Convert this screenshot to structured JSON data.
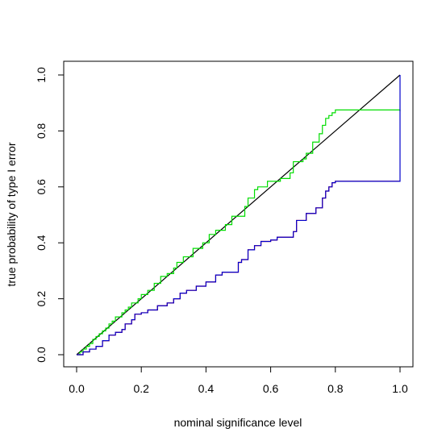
{
  "chart_data": {
    "type": "line",
    "title": "",
    "xlabel": "nominal significance level",
    "ylabel": "true probability of type I error",
    "xlim": [
      0,
      1
    ],
    "ylim": [
      0,
      1
    ],
    "x_ticks": [
      0.0,
      0.2,
      0.4,
      0.6,
      0.8,
      1.0
    ],
    "y_ticks": [
      0.0,
      0.2,
      0.4,
      0.6,
      0.8,
      1.0
    ],
    "x_tick_labels": [
      "0.0",
      "0.2",
      "0.4",
      "0.6",
      "0.8",
      "1.0"
    ],
    "y_tick_labels": [
      "0.0",
      "0.2",
      "0.4",
      "0.6",
      "0.8",
      "1.0"
    ],
    "grid": false,
    "series": [
      {
        "color": "#000000",
        "step": false,
        "points": [
          [
            0,
            0
          ],
          [
            1,
            1
          ]
        ]
      },
      {
        "color": "#00dd00",
        "step": true,
        "points": [
          [
            0.0,
            0.0
          ],
          [
            0.01,
            0.01
          ],
          [
            0.02,
            0.02
          ],
          [
            0.03,
            0.03
          ],
          [
            0.04,
            0.04
          ],
          [
            0.05,
            0.055
          ],
          [
            0.06,
            0.065
          ],
          [
            0.07,
            0.075
          ],
          [
            0.08,
            0.085
          ],
          [
            0.09,
            0.095
          ],
          [
            0.1,
            0.11
          ],
          [
            0.11,
            0.12
          ],
          [
            0.12,
            0.135
          ],
          [
            0.14,
            0.15
          ],
          [
            0.15,
            0.16
          ],
          [
            0.16,
            0.17
          ],
          [
            0.17,
            0.185
          ],
          [
            0.19,
            0.2
          ],
          [
            0.2,
            0.215
          ],
          [
            0.22,
            0.23
          ],
          [
            0.24,
            0.255
          ],
          [
            0.26,
            0.28
          ],
          [
            0.28,
            0.29
          ],
          [
            0.3,
            0.31
          ],
          [
            0.31,
            0.33
          ],
          [
            0.33,
            0.35
          ],
          [
            0.36,
            0.38
          ],
          [
            0.39,
            0.4
          ],
          [
            0.41,
            0.43
          ],
          [
            0.43,
            0.445
          ],
          [
            0.46,
            0.465
          ],
          [
            0.48,
            0.495
          ],
          [
            0.52,
            0.53
          ],
          [
            0.53,
            0.56
          ],
          [
            0.55,
            0.59
          ],
          [
            0.56,
            0.6
          ],
          [
            0.59,
            0.62
          ],
          [
            0.63,
            0.63
          ],
          [
            0.66,
            0.65
          ],
          [
            0.67,
            0.69
          ],
          [
            0.7,
            0.7
          ],
          [
            0.71,
            0.72
          ],
          [
            0.73,
            0.76
          ],
          [
            0.75,
            0.79
          ],
          [
            0.76,
            0.82
          ],
          [
            0.77,
            0.845
          ],
          [
            0.78,
            0.855
          ],
          [
            0.79,
            0.865
          ],
          [
            0.8,
            0.875
          ],
          [
            1.0,
            0.875
          ],
          [
            1.0,
            0.87
          ]
        ]
      },
      {
        "color": "#ff0000",
        "step": true,
        "points": [
          [
            0.0,
            0.0
          ],
          [
            0.02,
            0.01
          ],
          [
            0.04,
            0.02
          ],
          [
            0.06,
            0.03
          ],
          [
            0.08,
            0.05
          ],
          [
            0.1,
            0.07
          ],
          [
            0.12,
            0.08
          ],
          [
            0.14,
            0.09
          ],
          [
            0.15,
            0.11
          ],
          [
            0.17,
            0.125
          ],
          [
            0.18,
            0.145
          ],
          [
            0.2,
            0.15
          ],
          [
            0.22,
            0.16
          ],
          [
            0.25,
            0.175
          ],
          [
            0.28,
            0.185
          ],
          [
            0.3,
            0.2
          ],
          [
            0.32,
            0.22
          ],
          [
            0.34,
            0.23
          ],
          [
            0.37,
            0.245
          ],
          [
            0.4,
            0.26
          ],
          [
            0.43,
            0.285
          ],
          [
            0.45,
            0.295
          ],
          [
            0.5,
            0.33
          ],
          [
            0.51,
            0.34
          ],
          [
            0.53,
            0.375
          ],
          [
            0.55,
            0.39
          ],
          [
            0.57,
            0.405
          ],
          [
            0.6,
            0.41
          ],
          [
            0.62,
            0.42
          ],
          [
            0.67,
            0.44
          ],
          [
            0.68,
            0.48
          ],
          [
            0.71,
            0.505
          ],
          [
            0.74,
            0.525
          ],
          [
            0.76,
            0.56
          ],
          [
            0.77,
            0.585
          ],
          [
            0.78,
            0.6
          ],
          [
            0.79,
            0.615
          ],
          [
            0.8,
            0.62
          ],
          [
            1.0,
            0.62
          ]
        ]
      },
      {
        "color": "#0000cc",
        "step": true,
        "points": [
          [
            0.0,
            0.0
          ],
          [
            0.02,
            0.01
          ],
          [
            0.04,
            0.02
          ],
          [
            0.06,
            0.03
          ],
          [
            0.08,
            0.05
          ],
          [
            0.1,
            0.07
          ],
          [
            0.12,
            0.08
          ],
          [
            0.14,
            0.09
          ],
          [
            0.15,
            0.11
          ],
          [
            0.17,
            0.125
          ],
          [
            0.18,
            0.145
          ],
          [
            0.2,
            0.15
          ],
          [
            0.22,
            0.16
          ],
          [
            0.25,
            0.175
          ],
          [
            0.28,
            0.185
          ],
          [
            0.3,
            0.2
          ],
          [
            0.32,
            0.22
          ],
          [
            0.34,
            0.23
          ],
          [
            0.37,
            0.245
          ],
          [
            0.4,
            0.26
          ],
          [
            0.43,
            0.285
          ],
          [
            0.45,
            0.295
          ],
          [
            0.5,
            0.33
          ],
          [
            0.51,
            0.34
          ],
          [
            0.53,
            0.375
          ],
          [
            0.55,
            0.39
          ],
          [
            0.57,
            0.405
          ],
          [
            0.6,
            0.41
          ],
          [
            0.62,
            0.42
          ],
          [
            0.67,
            0.44
          ],
          [
            0.68,
            0.48
          ],
          [
            0.71,
            0.505
          ],
          [
            0.74,
            0.525
          ],
          [
            0.76,
            0.56
          ],
          [
            0.77,
            0.585
          ],
          [
            0.78,
            0.6
          ],
          [
            0.79,
            0.615
          ],
          [
            0.8,
            0.62
          ],
          [
            1.0,
            0.62
          ],
          [
            1.0,
            1.0
          ]
        ]
      }
    ]
  }
}
